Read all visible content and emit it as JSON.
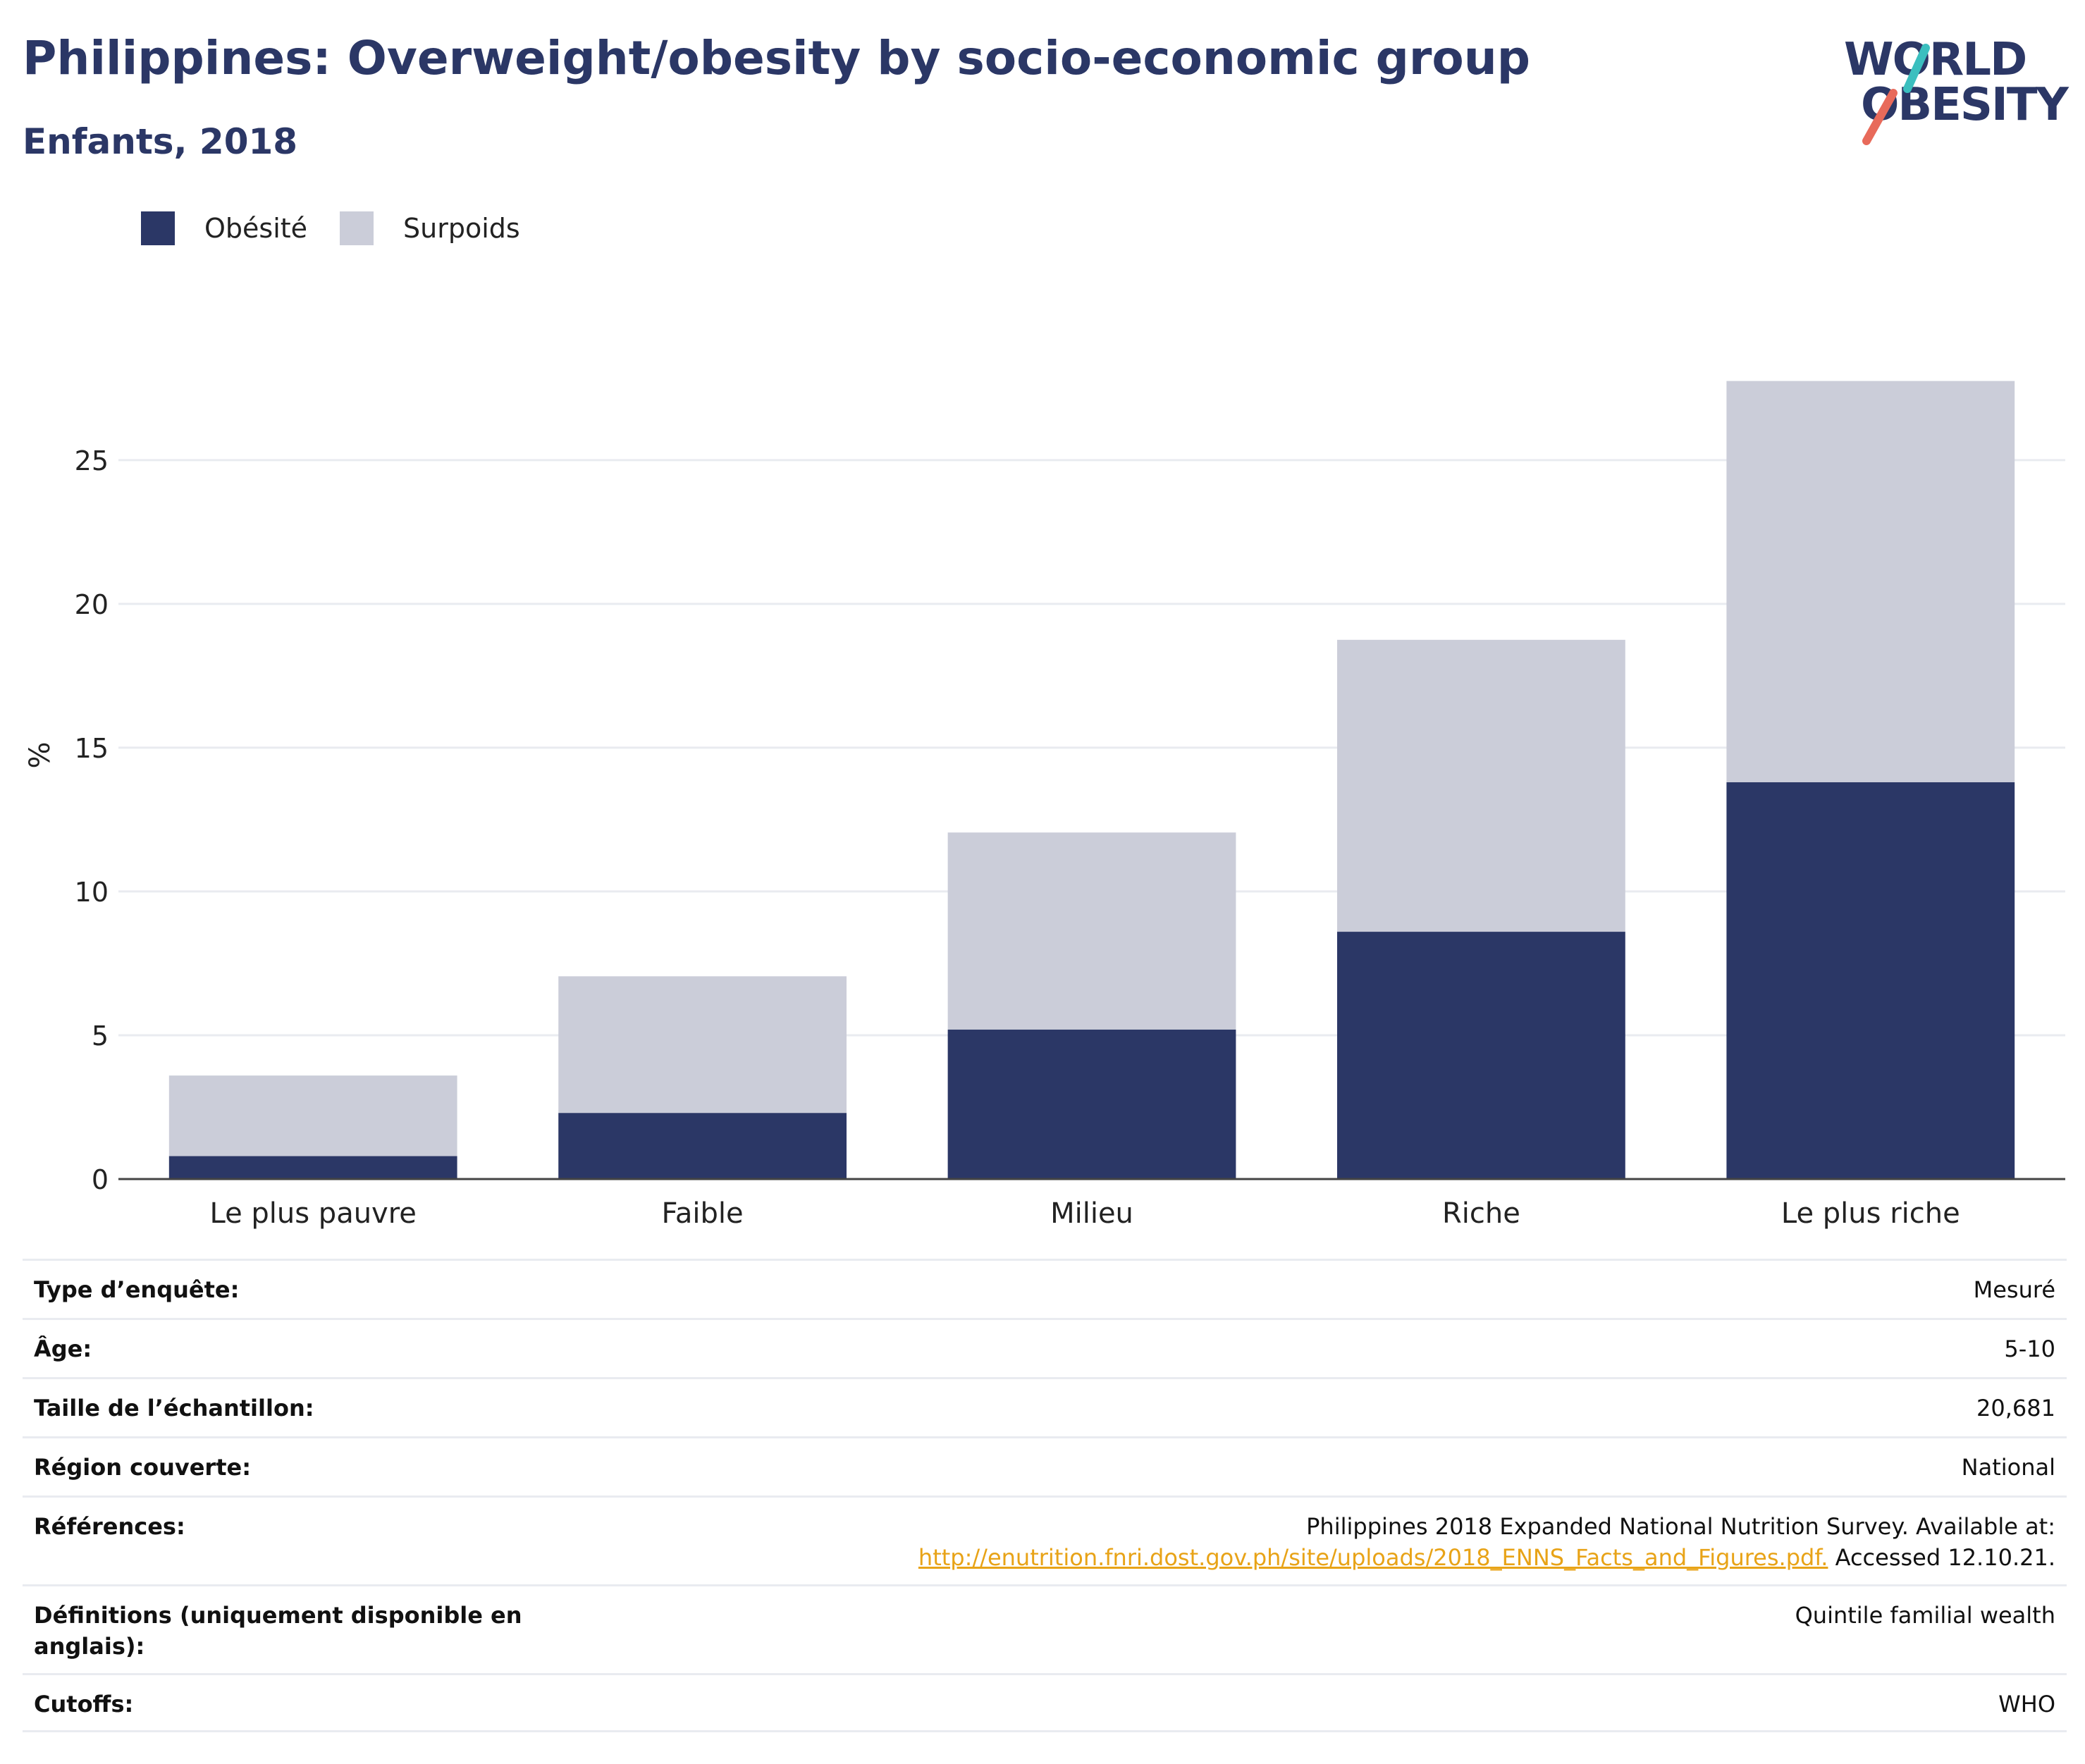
{
  "header": {
    "title": "Philippines: Overweight/obesity by socio-economic group",
    "subtitle": "Enfants, 2018"
  },
  "logo": {
    "line1": "WORLD",
    "line2": "OBESITY",
    "colors": {
      "navy": "#2b3766",
      "teal": "#3bbfbf",
      "coral": "#e86a5a"
    }
  },
  "colors": {
    "obesity": "#2b3766",
    "overweight": "#cbcdd9",
    "grid": "#e9ebf0",
    "axis": "#444444",
    "link": "#e8a317"
  },
  "chart_data": {
    "type": "bar",
    "stacked": true,
    "categories": [
      "Le plus pauvre",
      "Faible",
      "Milieu",
      "Riche",
      "Le plus riche"
    ],
    "series": [
      {
        "name": "Obésité",
        "values": [
          0.8,
          2.3,
          5.2,
          8.6,
          13.8
        ]
      },
      {
        "name": "Surpoids",
        "values": [
          2.8,
          4.75,
          6.85,
          10.15,
          13.95
        ]
      }
    ],
    "xlabel": "",
    "ylabel": "%",
    "ylim": [
      0,
      28.5
    ],
    "yticks": [
      0,
      5,
      10,
      15,
      20,
      25
    ],
    "grid": true,
    "legend": "top-left"
  },
  "details": [
    {
      "label": "Type d’enquête:",
      "value": "Mesuré"
    },
    {
      "label": "Âge:",
      "value": "5-10"
    },
    {
      "label": "Taille de l’échantillon:",
      "value": "20,681"
    },
    {
      "label": "Région couverte:",
      "value": "National"
    },
    {
      "label": "Références:",
      "value": "Philippines 2018 Expanded National Nutrition Survey. Available at:",
      "link": "http://enutrition.fnri.dost.gov.ph/site/uploads/2018_ENNS_Facts_and_Figures.pdf.",
      "suffix": " Accessed 12.10.21."
    },
    {
      "label_line1": "Définitions (uniquement disponible en",
      "label_line2": "anglais):",
      "value": "Quintile familial wealth"
    },
    {
      "label": "Cutoffs:",
      "value": "WHO"
    }
  ]
}
